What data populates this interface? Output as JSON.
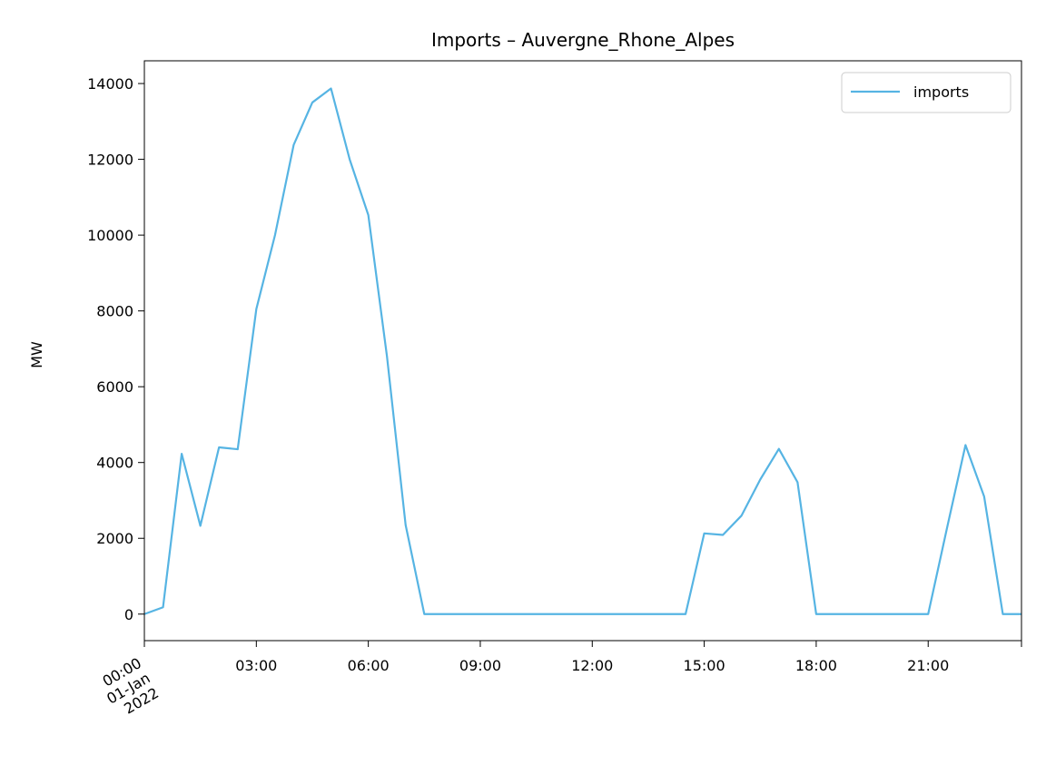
{
  "chart_data": {
    "type": "line",
    "title": "Imports – Auvergne_Rhone_Alpes",
    "xlabel": "",
    "ylabel": "MW",
    "x_start_label": [
      "00:00",
      "01-Jan",
      "2022"
    ],
    "x_tick_labels": [
      "03:00",
      "06:00",
      "09:00",
      "12:00",
      "15:00",
      "18:00",
      "21:00"
    ],
    "x_tick_hours": [
      3,
      6,
      9,
      12,
      15,
      18,
      21
    ],
    "xlim_hours": [
      0,
      23.5
    ],
    "ylim": [
      -700,
      14600
    ],
    "y_ticks": [
      0,
      2000,
      4000,
      6000,
      8000,
      10000,
      12000,
      14000
    ],
    "legend_position": "upper-right",
    "grid": false,
    "series": [
      {
        "name": "imports",
        "color": "#56b4e3",
        "x_hours": [
          0,
          0.5,
          1,
          1.5,
          2,
          2.5,
          3,
          3.5,
          4,
          4.5,
          5,
          5.5,
          6,
          6.5,
          7,
          7.5,
          8,
          8.5,
          9,
          9.5,
          10,
          10.5,
          11,
          11.5,
          12,
          12.5,
          13,
          13.5,
          14,
          14.5,
          15,
          15.5,
          16,
          16.5,
          17,
          17.5,
          18,
          18.5,
          19,
          19.5,
          20,
          20.5,
          21,
          21.5,
          22,
          22.5,
          23,
          23.5
        ],
        "values": [
          0,
          180,
          4230,
          2330,
          4400,
          4350,
          8050,
          10000,
          12380,
          13500,
          13870,
          12000,
          10530,
          6800,
          2350,
          0,
          0,
          0,
          0,
          0,
          0,
          0,
          0,
          0,
          0,
          0,
          0,
          0,
          0,
          0,
          2130,
          2090,
          2600,
          3550,
          4360,
          3480,
          0,
          0,
          0,
          0,
          0,
          0,
          0,
          2250,
          4460,
          3100,
          0,
          0
        ]
      }
    ]
  }
}
